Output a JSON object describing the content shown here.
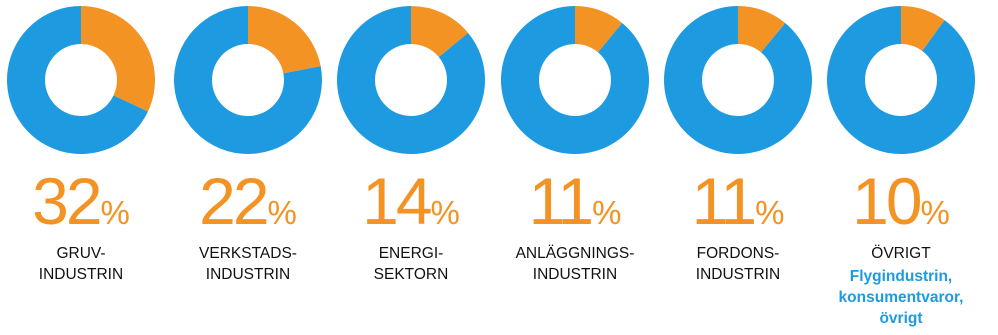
{
  "colors": {
    "blue": "#1e9be0",
    "orange": "#f39324",
    "label_text": "#111111"
  },
  "chart_data": {
    "type": "pie",
    "style": "donut",
    "slices": [
      {
        "value": 32,
        "value_text": "32",
        "unit": "%",
        "label_lines": [
          "GRUV-",
          "INDUSTRIN"
        ],
        "note_lines": []
      },
      {
        "value": 22,
        "value_text": "22",
        "unit": "%",
        "label_lines": [
          "VERKSTADS-",
          "INDUSTRIN"
        ],
        "note_lines": []
      },
      {
        "value": 14,
        "value_text": "14",
        "unit": "%",
        "label_lines": [
          "ENERGI-",
          "SEKTORN"
        ],
        "note_lines": []
      },
      {
        "value": 11,
        "value_text": "11",
        "unit": "%",
        "label_lines": [
          "ANLÄGGNINGS-",
          "INDUSTRIN"
        ],
        "note_lines": []
      },
      {
        "value": 11,
        "value_text": "11",
        "unit": "%",
        "label_lines": [
          "FORDONS-",
          "INDUSTRIN"
        ],
        "note_lines": []
      },
      {
        "value": 10,
        "value_text": "10",
        "unit": "%",
        "label_lines": [
          "ÖVRIGT"
        ],
        "note_lines": [
          "Flygindustrin,",
          "konsumentvaror,",
          "övrigt"
        ]
      }
    ]
  }
}
